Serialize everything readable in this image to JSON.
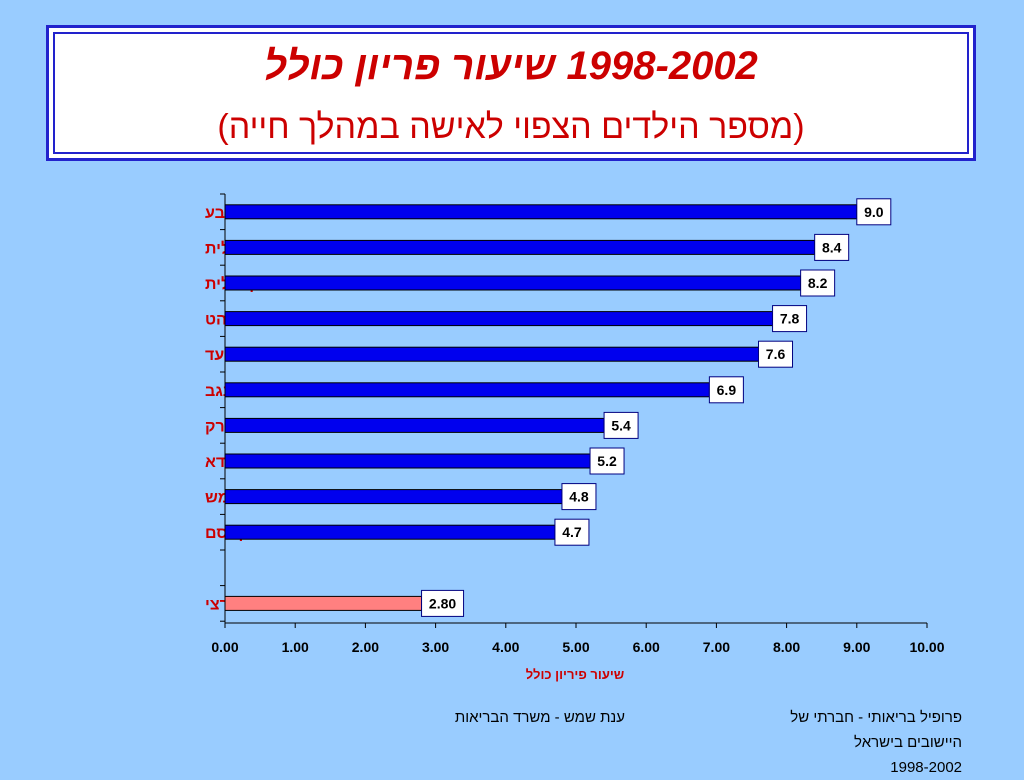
{
  "header": {
    "title": "1998-2002 שיעור פריון כולל",
    "subtitle": "(מספר הילדים הצפוי לאישה במהלך חייה)"
  },
  "chart_data": {
    "type": "bar",
    "orientation": "horizontal",
    "categories": [
      "תל שבע",
      "ביתר עלית",
      "מודיעין עילית",
      "רהט",
      "אלעד",
      "ערערה-בנגב",
      "בני ברק",
      "כפר מנדא",
      "בית שמש",
      "כפר קאסם",
      "",
      "ממוצע ארצי"
    ],
    "values": [
      9.0,
      8.4,
      8.2,
      7.8,
      7.6,
      6.9,
      5.4,
      5.2,
      4.8,
      4.7,
      null,
      2.8
    ],
    "data_labels": [
      "9.0",
      "8.4",
      "8.2",
      "7.8",
      "7.6",
      "6.9",
      "5.4",
      "5.2",
      "4.8",
      "4.7",
      "",
      "2.80"
    ],
    "xlabel": "שיעור פיריון כולל",
    "xlim": [
      0,
      10
    ],
    "x_ticks": [
      "0.00",
      "1.00",
      "2.00",
      "3.00",
      "4.00",
      "5.00",
      "6.00",
      "7.00",
      "8.00",
      "9.00",
      "10.00"
    ],
    "colors": {
      "bar": "#0000ee",
      "highlight_bar": "#ff8080",
      "category_text": "#cc0000",
      "xlabel_text": "#cc0000"
    },
    "grid": false,
    "legend": "none"
  },
  "footer": {
    "left": "ענת שמש - משרד הבריאות",
    "right_line1": "פרופיל בריאותי - חברתי של",
    "right_line2": "היישובים בישראל",
    "right_line3": "1998-2002"
  }
}
